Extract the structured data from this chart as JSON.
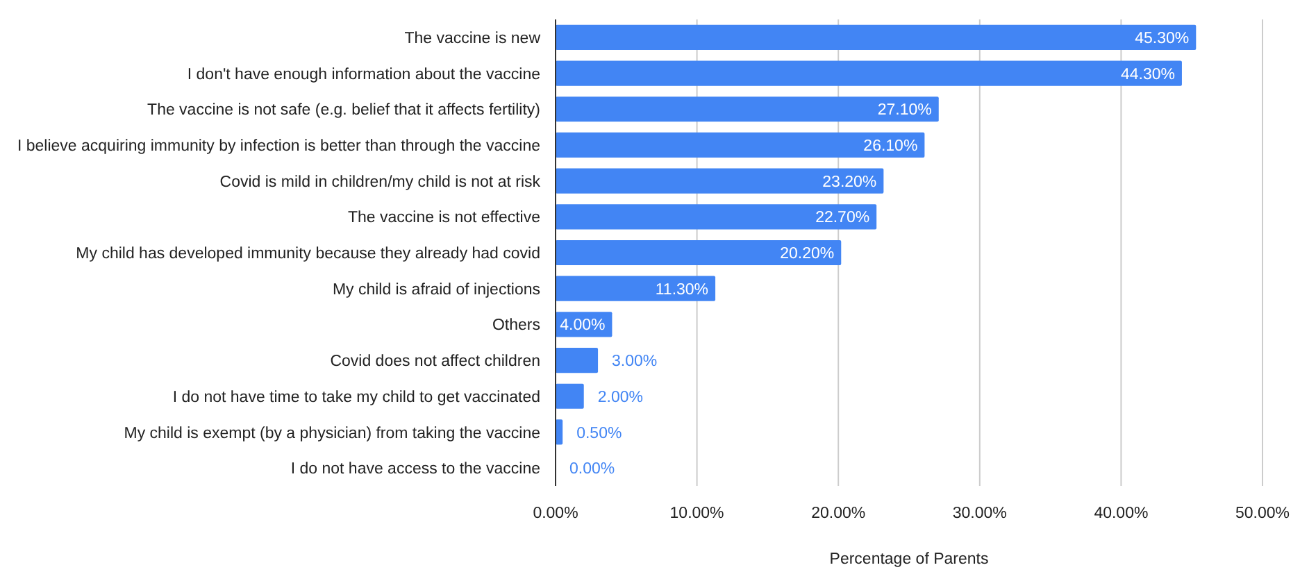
{
  "chart_data": {
    "type": "bar",
    "orientation": "horizontal",
    "xlabel": "Percentage of Parents",
    "categories": [
      "The vaccine is new",
      "I don't have enough information about the vaccine",
      "The vaccine is not safe (e.g. belief that it affects fertility)",
      "I believe acquiring immunity by infection is better than through the vaccine",
      "Covid is mild in children/my child is not at risk",
      "The vaccine is not effective",
      "My child has developed immunity because they already had covid",
      "My child is afraid of injections",
      "Others",
      "Covid does not affect children",
      "I do not have time to take my child to get vaccinated",
      "My child is exempt (by a physician) from taking the vaccine",
      "I do not have access to the vaccine"
    ],
    "values": [
      45.3,
      44.3,
      27.1,
      26.1,
      23.2,
      22.7,
      20.2,
      11.3,
      4.0,
      3.0,
      2.0,
      0.5,
      0.0
    ],
    "value_labels": [
      "45.30%",
      "44.30%",
      "27.10%",
      "26.10%",
      "23.20%",
      "22.70%",
      "20.20%",
      "11.30%",
      "4.00%",
      "3.00%",
      "2.00%",
      "0.50%",
      "0.00%"
    ],
    "color": "#4285f4",
    "xlim": [
      0,
      50
    ],
    "xticks": [
      {
        "value": 0,
        "label": "0.00%"
      },
      {
        "value": 10,
        "label": "10.00%"
      },
      {
        "value": 20,
        "label": "20.00%"
      },
      {
        "value": 30,
        "label": "30.00%"
      },
      {
        "value": 40,
        "label": "40.00%"
      },
      {
        "value": 50,
        "label": "50.00%"
      }
    ],
    "grid": "x"
  }
}
